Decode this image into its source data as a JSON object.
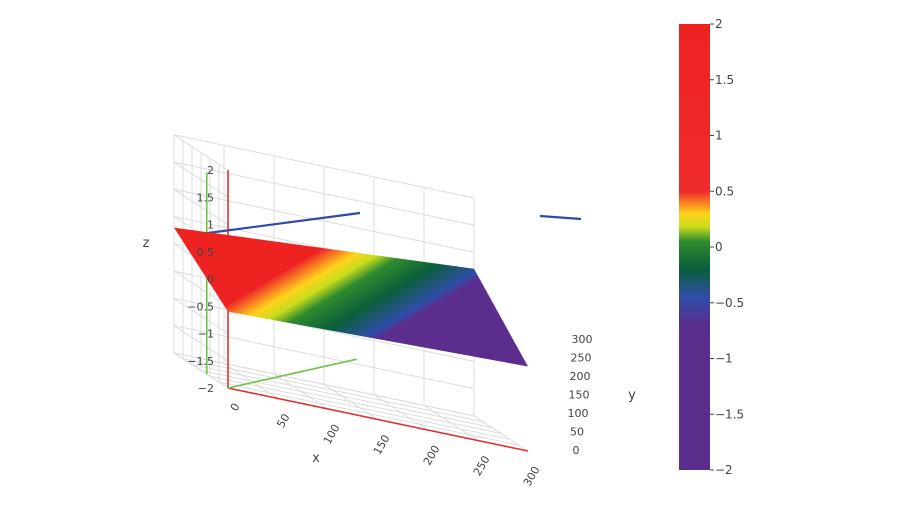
{
  "chart_data": {
    "type": "surface",
    "x_axis": {
      "label": "x",
      "range": [
        0,
        300
      ],
      "ticks": [
        0,
        50,
        100,
        150,
        200,
        250,
        300
      ]
    },
    "y_axis": {
      "label": "y",
      "range": [
        0,
        300
      ],
      "ticks": [
        0,
        50,
        100,
        150,
        200,
        250,
        300
      ]
    },
    "z_axis": {
      "label": "z",
      "range": [
        -2,
        2
      ],
      "ticks": [
        -2,
        -1.5,
        -1,
        -0.5,
        0,
        0.5,
        1,
        1.5,
        2
      ],
      "tick_labels": [
        "−2",
        "−1.5",
        "−1",
        "−0.5",
        "0",
        "0.5",
        "1",
        "1.5",
        "2"
      ]
    },
    "surface": {
      "x_range": [
        0,
        300
      ],
      "y_range": [
        0,
        300
      ],
      "corner_z": {
        "x0_y0": -0.6,
        "x300_y0": -0.45,
        "x0_y300": 0.3,
        "x300_y300": 0.7
      }
    },
    "axis_lines": {
      "x": {
        "color": "#e03030"
      },
      "y": {
        "color": "#2d4aa8"
      },
      "z": {
        "color": "#6cc24a"
      }
    },
    "colorscale": [
      {
        "value": -2.0,
        "color": "#5b2d8c"
      },
      {
        "value": -0.7,
        "color": "#5b2d8c"
      },
      {
        "value": -0.45,
        "color": "#2f4ea8"
      },
      {
        "value": -0.2,
        "color": "#0b5e3b"
      },
      {
        "value": 0.05,
        "color": "#2e8b2e"
      },
      {
        "value": 0.18,
        "color": "#c8dc1e"
      },
      {
        "value": 0.3,
        "color": "#ffd21a"
      },
      {
        "value": 0.5,
        "color": "#ef2a2a"
      },
      {
        "value": 2.0,
        "color": "#ef2222"
      }
    ],
    "colorbar": {
      "range": [
        -2,
        2
      ],
      "ticks": [
        2,
        1.5,
        1,
        0.5,
        0,
        -0.5,
        -1,
        -1.5,
        -2
      ],
      "tick_labels": [
        "2",
        "1.5",
        "1",
        "0.5",
        "0",
        "−0.5",
        "−1",
        "−1.5",
        "−2"
      ]
    },
    "grid": true,
    "legend": "colorbar-right"
  }
}
